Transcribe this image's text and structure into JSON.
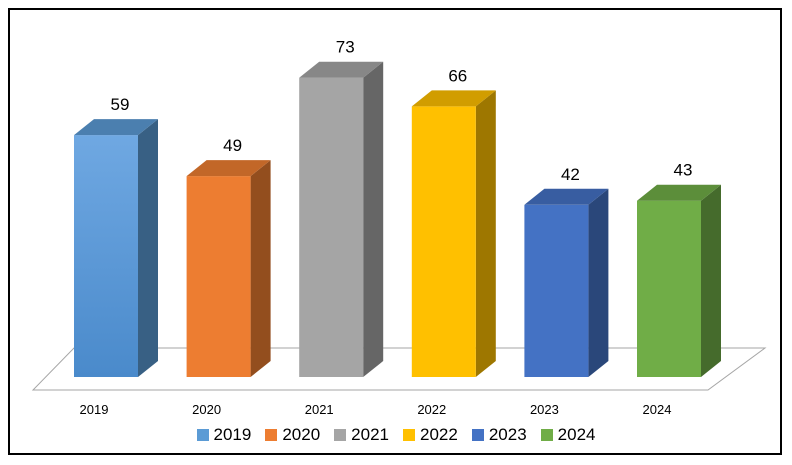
{
  "chart_data": {
    "type": "bar",
    "categories": [
      "2019",
      "2020",
      "2021",
      "2022",
      "2023",
      "2024"
    ],
    "values": [
      59,
      49,
      73,
      66,
      42,
      43
    ],
    "colors": [
      "#5B9BD5",
      "#ED7D31",
      "#A5A5A5",
      "#FFC000",
      "#4472C4",
      "#70AD47"
    ],
    "legend": [
      "2019",
      "2020",
      "2021",
      "2022",
      "2023",
      "2024"
    ],
    "legend_position": "bottom",
    "style": "3d-column",
    "grid": false,
    "title": "",
    "xlabel": "",
    "ylabel": "",
    "ylim": [
      0,
      80
    ]
  }
}
